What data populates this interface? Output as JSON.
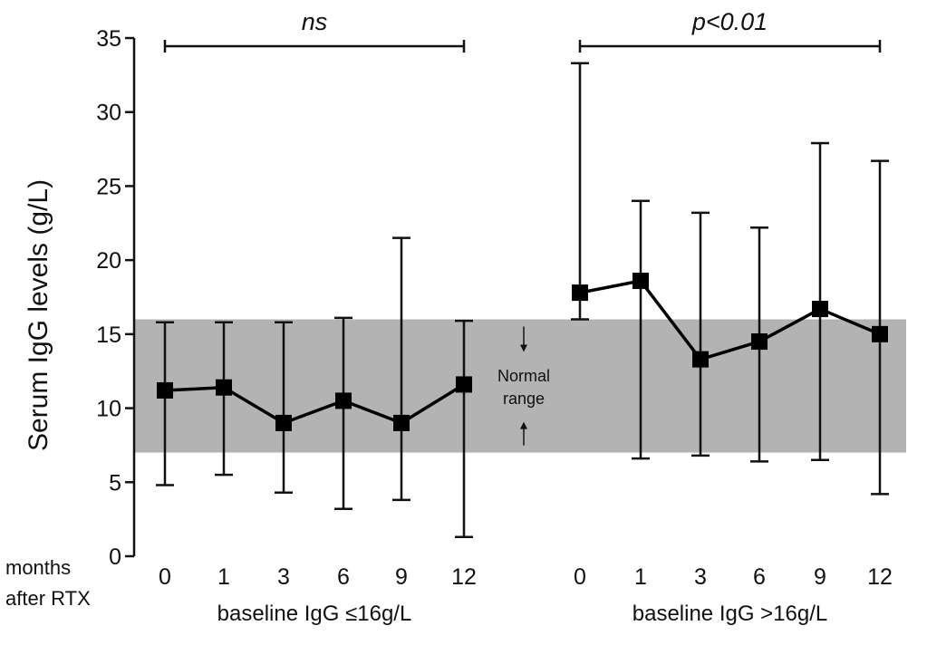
{
  "chart_data": {
    "type": "scatter",
    "ylabel": "Serum IgG levels (g/L)",
    "ylim": [
      0,
      35
    ],
    "yticks": [
      0,
      5,
      10,
      15,
      20,
      25,
      30,
      35
    ],
    "grid": false,
    "x_axis_caption": "months after RTX",
    "x_axis_caption_lines": [
      "months",
      "after RTX"
    ],
    "normal_range": {
      "low": 7,
      "high": 16,
      "label_lines": [
        "Normal",
        "range"
      ],
      "color": "#b3b3b3"
    },
    "groups": [
      {
        "label": "baseline IgG ≤16g/L",
        "significance": "ns",
        "months": [
          "0",
          "1",
          "3",
          "6",
          "9",
          "12"
        ],
        "mean": [
          11.2,
          11.4,
          9.0,
          10.5,
          9.0,
          11.6
        ],
        "upper": [
          15.8,
          15.8,
          15.8,
          16.1,
          21.5,
          15.9
        ],
        "lower": [
          4.8,
          5.5,
          4.3,
          3.2,
          3.8,
          1.3
        ]
      },
      {
        "label": "baseline IgG >16g/L",
        "significance": "p<0.01",
        "months": [
          "0",
          "1",
          "3",
          "6",
          "9",
          "12"
        ],
        "mean": [
          17.8,
          18.6,
          13.3,
          14.5,
          16.7,
          15.0
        ],
        "upper": [
          33.3,
          24.0,
          23.2,
          22.2,
          27.9,
          26.7
        ],
        "lower": [
          16.0,
          6.6,
          6.8,
          6.4,
          6.5,
          4.2
        ]
      }
    ],
    "colors": {
      "marker": "#000000",
      "line": "#000000"
    }
  }
}
